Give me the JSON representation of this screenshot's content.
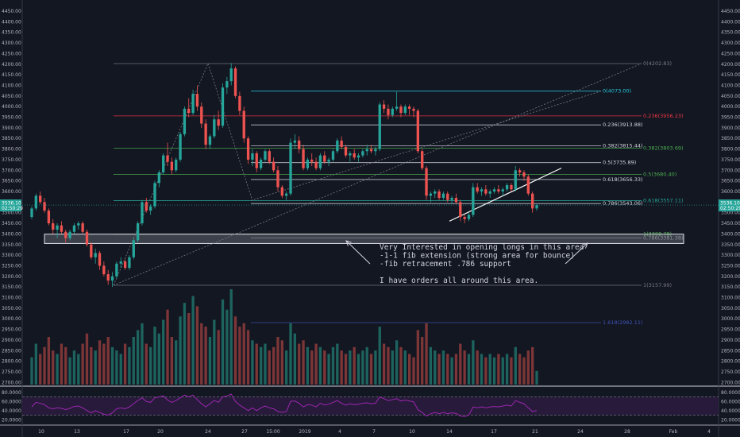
{
  "chart_data": {
    "type": "candlestick",
    "y_axis": {
      "ticks": [
        "4450.00",
        "4400.00",
        "4350.00",
        "4300.00",
        "4250.00",
        "4200.00",
        "4150.00",
        "4100.00",
        "4050.00",
        "4000.00",
        "3950.00",
        "3900.00",
        "3850.00",
        "3800.00",
        "3750.00",
        "3700.00",
        "3650.00",
        "3600.00",
        "3550.00",
        "3500.00",
        "3450.00",
        "3400.00",
        "3350.00",
        "3300.00",
        "3250.00",
        "3200.00",
        "3150.00",
        "3100.00",
        "3050.00",
        "3000.00",
        "2950.00",
        "2900.00",
        "2850.00",
        "2800.00",
        "2750.00",
        "2700.00"
      ],
      "ylim": [
        2690,
        4480
      ]
    },
    "x_axis": {
      "ticks": [
        "10",
        "13",
        "17",
        "20",
        "24",
        "27",
        "15:00",
        "2019",
        "4",
        "7",
        "10",
        "14",
        "17",
        "21",
        "24",
        "28",
        "Feb",
        "4"
      ]
    },
    "last_price": "3536.10",
    "last_time": "02:50:29",
    "colors": {
      "up": "#26a69a",
      "down": "#ef5350",
      "rsi": "#9c27b0",
      "box": "#d1d4dc",
      "trendline": "#ffffff"
    },
    "candles": [
      [
        3480,
        3530,
        3470,
        3520
      ],
      [
        3520,
        3590,
        3510,
        3580
      ],
      [
        3580,
        3600,
        3540,
        3550
      ],
      [
        3550,
        3570,
        3500,
        3510
      ],
      [
        3510,
        3520,
        3440,
        3450
      ],
      [
        3450,
        3470,
        3400,
        3420
      ],
      [
        3420,
        3450,
        3380,
        3440
      ],
      [
        3440,
        3460,
        3400,
        3410
      ],
      [
        3410,
        3420,
        3360,
        3380
      ],
      [
        3380,
        3420,
        3370,
        3410
      ],
      [
        3410,
        3450,
        3400,
        3440
      ],
      [
        3440,
        3460,
        3420,
        3450
      ],
      [
        3450,
        3460,
        3400,
        3410
      ],
      [
        3410,
        3420,
        3340,
        3350
      ],
      [
        3350,
        3360,
        3280,
        3290
      ],
      [
        3290,
        3330,
        3260,
        3310
      ],
      [
        3310,
        3320,
        3230,
        3250
      ],
      [
        3250,
        3270,
        3200,
        3210
      ],
      [
        3210,
        3230,
        3160,
        3180
      ],
      [
        3180,
        3220,
        3150,
        3200
      ],
      [
        3200,
        3270,
        3190,
        3260
      ],
      [
        3260,
        3290,
        3240,
        3270
      ],
      [
        3270,
        3280,
        3230,
        3240
      ],
      [
        3240,
        3300,
        3230,
        3290
      ],
      [
        3290,
        3380,
        3280,
        3370
      ],
      [
        3370,
        3460,
        3360,
        3450
      ],
      [
        3450,
        3560,
        3440,
        3550
      ],
      [
        3550,
        3570,
        3500,
        3510
      ],
      [
        3510,
        3540,
        3490,
        3530
      ],
      [
        3530,
        3650,
        3520,
        3640
      ],
      [
        3640,
        3700,
        3620,
        3690
      ],
      [
        3690,
        3780,
        3680,
        3770
      ],
      [
        3770,
        3830,
        3720,
        3740
      ],
      [
        3740,
        3760,
        3680,
        3700
      ],
      [
        3700,
        3760,
        3690,
        3750
      ],
      [
        3750,
        3880,
        3740,
        3870
      ],
      [
        3870,
        4000,
        3860,
        3990
      ],
      [
        3990,
        4040,
        3950,
        3970
      ],
      [
        3970,
        4080,
        3960,
        4060
      ],
      [
        4060,
        4100,
        3980,
        4000
      ],
      [
        4000,
        4020,
        3900,
        3920
      ],
      [
        3920,
        3940,
        3800,
        3820
      ],
      [
        3820,
        3870,
        3800,
        3860
      ],
      [
        3860,
        3960,
        3850,
        3940
      ],
      [
        3940,
        3980,
        3890,
        3910
      ],
      [
        3910,
        4110,
        3900,
        4090
      ],
      [
        4090,
        4140,
        4060,
        4120
      ],
      [
        4120,
        4205,
        4100,
        4180
      ],
      [
        4180,
        4190,
        4040,
        4050
      ],
      [
        4050,
        4070,
        3960,
        3980
      ],
      [
        3980,
        4000,
        3830,
        3850
      ],
      [
        3850,
        3860,
        3730,
        3750
      ],
      [
        3750,
        3800,
        3720,
        3780
      ],
      [
        3780,
        3790,
        3690,
        3710
      ],
      [
        3710,
        3760,
        3700,
        3750
      ],
      [
        3750,
        3800,
        3740,
        3790
      ],
      [
        3790,
        3800,
        3730,
        3740
      ],
      [
        3740,
        3760,
        3690,
        3700
      ],
      [
        3700,
        3720,
        3600,
        3620
      ],
      [
        3620,
        3630,
        3570,
        3580
      ],
      [
        3580,
        3600,
        3560,
        3590
      ],
      [
        3590,
        3850,
        3580,
        3830
      ],
      [
        3830,
        3870,
        3800,
        3840
      ],
      [
        3840,
        3860,
        3780,
        3800
      ],
      [
        3800,
        3820,
        3700,
        3710
      ],
      [
        3710,
        3760,
        3700,
        3750
      ],
      [
        3750,
        3780,
        3720,
        3740
      ],
      [
        3740,
        3760,
        3700,
        3710
      ],
      [
        3710,
        3780,
        3700,
        3770
      ],
      [
        3770,
        3790,
        3730,
        3740
      ],
      [
        3740,
        3760,
        3720,
        3750
      ],
      [
        3750,
        3800,
        3740,
        3790
      ],
      [
        3790,
        3850,
        3780,
        3840
      ],
      [
        3840,
        3860,
        3800,
        3810
      ],
      [
        3810,
        3820,
        3760,
        3770
      ],
      [
        3770,
        3790,
        3740,
        3780
      ],
      [
        3780,
        3800,
        3750,
        3760
      ],
      [
        3760,
        3780,
        3740,
        3770
      ],
      [
        3770,
        3800,
        3760,
        3790
      ],
      [
        3790,
        3820,
        3770,
        3800
      ],
      [
        3800,
        3820,
        3780,
        3790
      ],
      [
        3790,
        3810,
        3770,
        3800
      ],
      [
        3800,
        4020,
        3790,
        4010
      ],
      [
        4010,
        4030,
        3970,
        3990
      ],
      [
        3990,
        4010,
        3940,
        3960
      ],
      [
        3960,
        4000,
        3950,
        3990
      ],
      [
        3990,
        4070,
        3980,
        4000
      ],
      [
        4000,
        4010,
        3950,
        3970
      ],
      [
        3970,
        4010,
        3960,
        4000
      ],
      [
        4000,
        4010,
        3960,
        3990
      ],
      [
        3990,
        4000,
        3950,
        3980
      ],
      [
        3980,
        3990,
        3780,
        3790
      ],
      [
        3790,
        3800,
        3700,
        3710
      ],
      [
        3710,
        3720,
        3560,
        3580
      ],
      [
        3580,
        3600,
        3550,
        3590
      ],
      [
        3590,
        3610,
        3570,
        3600
      ],
      [
        3600,
        3610,
        3560,
        3570
      ],
      [
        3570,
        3600,
        3560,
        3590
      ],
      [
        3590,
        3600,
        3550,
        3560
      ],
      [
        3560,
        3580,
        3540,
        3570
      ],
      [
        3570,
        3590,
        3540,
        3550
      ],
      [
        3550,
        3560,
        3460,
        3480
      ],
      [
        3480,
        3490,
        3450,
        3470
      ],
      [
        3470,
        3500,
        3460,
        3490
      ],
      [
        3490,
        3640,
        3480,
        3620
      ],
      [
        3620,
        3640,
        3590,
        3600
      ],
      [
        3600,
        3620,
        3580,
        3610
      ],
      [
        3610,
        3630,
        3580,
        3590
      ],
      [
        3590,
        3610,
        3570,
        3600
      ],
      [
        3600,
        3620,
        3590,
        3610
      ],
      [
        3610,
        3630,
        3590,
        3600
      ],
      [
        3600,
        3620,
        3580,
        3610
      ],
      [
        3610,
        3640,
        3600,
        3630
      ],
      [
        3630,
        3640,
        3600,
        3610
      ],
      [
        3610,
        3720,
        3600,
        3700
      ],
      [
        3700,
        3710,
        3670,
        3690
      ],
      [
        3690,
        3700,
        3650,
        3670
      ],
      [
        3670,
        3680,
        3580,
        3590
      ],
      [
        3590,
        3600,
        3500,
        3520
      ],
      [
        3520,
        3540,
        3510,
        3536
      ]
    ],
    "volume": [
      40,
      60,
      45,
      55,
      70,
      50,
      45,
      60,
      55,
      40,
      50,
      45,
      60,
      75,
      55,
      50,
      65,
      60,
      70,
      55,
      50,
      45,
      60,
      55,
      70,
      80,
      90,
      60,
      55,
      85,
      75,
      95,
      110,
      70,
      65,
      100,
      120,
      105,
      130,
      115,
      90,
      85,
      70,
      95,
      80,
      125,
      110,
      140,
      100,
      85,
      90,
      80,
      65,
      60,
      55,
      60,
      50,
      55,
      70,
      65,
      50,
      90,
      75,
      60,
      65,
      55,
      50,
      60,
      55,
      50,
      45,
      55,
      60,
      50,
      45,
      50,
      55,
      45,
      50,
      55,
      45,
      50,
      85,
      60,
      55,
      50,
      65,
      55,
      50,
      45,
      40,
      80,
      70,
      90,
      55,
      50,
      45,
      50,
      45,
      40,
      45,
      60,
      50,
      45,
      65,
      50,
      45,
      40,
      45,
      40,
      45,
      40,
      45,
      40,
      55,
      45,
      40,
      50,
      55,
      20
    ],
    "rsi": {
      "ticks": [
        "80.0000",
        "60.0000",
        "40.0000",
        "20.0000"
      ],
      "overbought": 70,
      "oversold": 30,
      "values": [
        48,
        58,
        56,
        53,
        46,
        44,
        46,
        45,
        42,
        45,
        49,
        50,
        46,
        40,
        35,
        40,
        36,
        32,
        30,
        35,
        44,
        46,
        44,
        48,
        55,
        62,
        68,
        60,
        58,
        68,
        70,
        72,
        63,
        58,
        62,
        68,
        74,
        70,
        74,
        64,
        55,
        48,
        55,
        62,
        58,
        70,
        72,
        76,
        60,
        52,
        46,
        40,
        46,
        40,
        46,
        50,
        46,
        44,
        38,
        36,
        38,
        60,
        61,
        56,
        48,
        53,
        52,
        48,
        56,
        52,
        54,
        58,
        62,
        56,
        52,
        55,
        53,
        54,
        56,
        57,
        55,
        56,
        70,
        66,
        62,
        64,
        66,
        61,
        63,
        61,
        59,
        42,
        36,
        28,
        33,
        36,
        33,
        36,
        33,
        35,
        34,
        28,
        27,
        30,
        48,
        46,
        48,
        46,
        48,
        49,
        48,
        50,
        52,
        50,
        62,
        58,
        55,
        46,
        38,
        40
      ]
    },
    "fib_levels": [
      {
        "label": "0(4202.83)",
        "price": 4202.83,
        "color": "#787b86"
      },
      {
        "label": "0(4073.00)",
        "price": 4073.0,
        "color": "#26c6da"
      },
      {
        "label": "0.236(3956.23)",
        "price": 3956.23,
        "color": "#f23645"
      },
      {
        "label": "0.236(3913.88)",
        "price": 3913.88,
        "color": "#d1d4dc"
      },
      {
        "label": "0.382(3815.44)",
        "price": 3815.44,
        "color": "#d1d4dc"
      },
      {
        "label": "0.382(3803.69)",
        "price": 3803.69,
        "color": "#4caf50"
      },
      {
        "label": "0.5(3735.89)",
        "price": 3735.89,
        "color": "#d1d4dc"
      },
      {
        "label": "0.5(3680.40)",
        "price": 3680.4,
        "color": "#4caf50"
      },
      {
        "label": "0.618(3656.33)",
        "price": 3656.33,
        "color": "#d1d4dc"
      },
      {
        "label": "0.618(3557.11)",
        "price": 3557.11,
        "color": "#26a69a"
      },
      {
        "label": "0.786(3543.06)",
        "price": 3543.06,
        "color": "#d1d4dc"
      },
      {
        "label": "1(3398.78)",
        "price": 3398.78,
        "color": "#4caf50"
      },
      {
        "label": "0.786(3381.38)",
        "price": 3381.38,
        "color": "#787b86"
      },
      {
        "label": "1(3157.99)",
        "price": 3157.99,
        "color": "#787b86"
      },
      {
        "label": "1.618(2982.11)",
        "price": 2982.11,
        "color": "#3f51b5"
      }
    ],
    "annotation": [
      "Very Interested in opening longs in this area",
      "-1-1 fib extension (strong area for bounce)",
      "-fib retracement .786 support",
      "",
      "I have orders all around this area."
    ]
  }
}
